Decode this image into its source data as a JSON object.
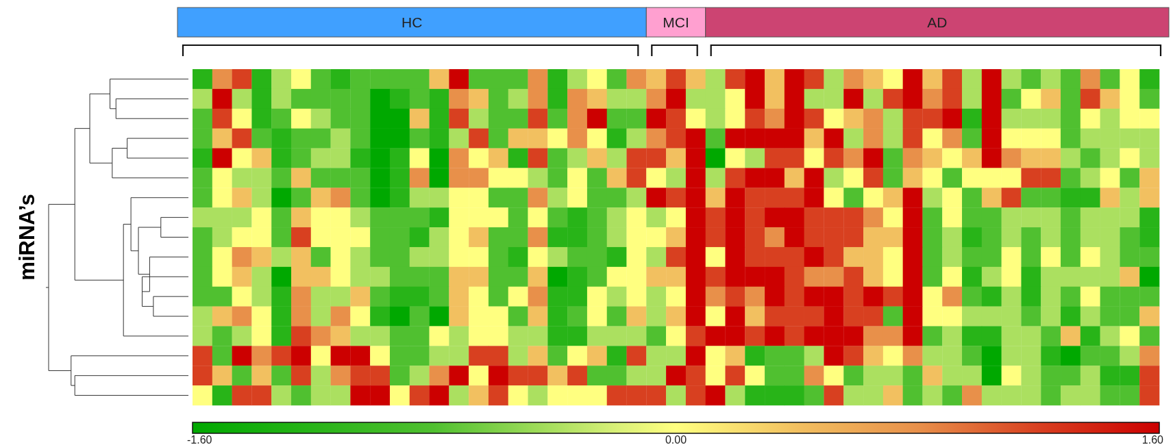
{
  "chart_data": {
    "type": "heatmap",
    "annotations": [
      "HC",
      "MCI",
      "AD",
      "miRNA’s"
    ],
    "categories": [
      null,
      null,
      null,
      null,
      null,
      null,
      null,
      null,
      null,
      null,
      null,
      null,
      null,
      null,
      null,
      null,
      null,
      null,
      null,
      null,
      null,
      null,
      null,
      null,
      null,
      null,
      null,
      null,
      null,
      null,
      null,
      null,
      null,
      null,
      null,
      null,
      null,
      null,
      null,
      null,
      null,
      null,
      null,
      null,
      null,
      null,
      null,
      null,
      null
    ],
    "y_categories": [
      null,
      null,
      null,
      null,
      null,
      null,
      null,
      null,
      null,
      null,
      null,
      null,
      null,
      null,
      null,
      null,
      null
    ],
    "clim": [
      -1.6,
      1.6
    ],
    "cticks": [
      {
        "value": -1.6,
        "label": "-1.60"
      },
      {
        "value": 0,
        "label": "0.00"
      },
      {
        "value": 1.6,
        "label": "1.60"
      }
    ],
    "cells": [
      [
        -1.2,
        0.8,
        1.2,
        -1.2,
        -0.4,
        0,
        -0.8,
        -1.2,
        -0.8,
        -0.8,
        -0.8,
        -0.8,
        0.4,
        1.6,
        -0.8,
        -0.8,
        -0.8,
        0.8,
        -1.2,
        -0.4,
        0,
        -0.8,
        0.8,
        0.4,
        1.2,
        0.4,
        -0.4,
        1.2,
        1.6,
        0.4,
        1.6,
        1.2,
        -0.4,
        0.8,
        0.4,
        0,
        1.6,
        0.4,
        1.2,
        -0.4,
        1.6,
        -0.4,
        -0.8,
        -0.4,
        -0.8,
        0.8,
        -0.8,
        0,
        -1.2
      ],
      [
        -0.4,
        1.6,
        -0.4,
        -1.2,
        -0.4,
        -0.8,
        -0.8,
        -0.8,
        -0.8,
        -1.6,
        -1.2,
        -0.8,
        -1.2,
        0.8,
        0.4,
        -0.8,
        -0.4,
        0.8,
        -1.2,
        0.8,
        0.4,
        -0.4,
        -0.4,
        0.8,
        1.6,
        -0.4,
        -0.4,
        0,
        1.6,
        0.4,
        1.6,
        -0.4,
        -0.4,
        1.6,
        -0.4,
        1.2,
        1.6,
        0.8,
        1.2,
        -0.4,
        1.6,
        -0.8,
        0,
        0.4,
        -0.8,
        1.2,
        0.4,
        0,
        -0.8
      ],
      [
        -0.8,
        1.2,
        0,
        -1.2,
        -0.8,
        0,
        -0.4,
        -0.8,
        -0.8,
        -1.6,
        -1.6,
        0.4,
        -1.2,
        1.2,
        -0.4,
        -0.8,
        -0.8,
        1.2,
        -0.8,
        0.8,
        1.6,
        -0.8,
        -0.8,
        1.6,
        1.2,
        0,
        -0.4,
        0,
        1.2,
        0.8,
        1.6,
        1.2,
        0,
        0.4,
        0.8,
        -0.4,
        1.2,
        1.2,
        1.6,
        -1.2,
        1.6,
        -0.4,
        -0.4,
        -0.4,
        -0.8,
        0,
        -0.4,
        0,
        0
      ],
      [
        -0.8,
        0.4,
        1.2,
        -0.8,
        -1.2,
        -0.8,
        -0.8,
        -0.4,
        -0.8,
        -1.6,
        -1.6,
        -0.8,
        -1.2,
        -0.4,
        1.2,
        -0.8,
        0.4,
        0.4,
        0,
        0.8,
        0,
        -1.2,
        -0.4,
        0.8,
        1.2,
        1.6,
        -0.8,
        1.6,
        1.6,
        1.6,
        1.6,
        0.4,
        1.6,
        -0.4,
        0.8,
        -0.4,
        1.2,
        0,
        0.8,
        -0.8,
        1.6,
        0,
        0,
        0,
        -0.8,
        -0.4,
        -0.4,
        -0.4,
        -0.4
      ],
      [
        -1.2,
        1.6,
        0,
        0.4,
        -1.2,
        -0.8,
        -0.4,
        -0.4,
        -1.2,
        -1.6,
        -1.2,
        0,
        -1.6,
        0.8,
        0,
        0.4,
        -1.2,
        1.2,
        -0.8,
        -0.4,
        0.4,
        -0.4,
        1.2,
        1.2,
        0.4,
        1.6,
        -1.6,
        0,
        -0.4,
        1.2,
        1.2,
        0,
        1.2,
        0.8,
        1.6,
        -0.8,
        0.8,
        0.4,
        0,
        0.4,
        1.6,
        0.8,
        0.4,
        0.4,
        -0.4,
        -0.8,
        -0.4,
        0,
        -0.4
      ],
      [
        -0.8,
        0,
        -0.4,
        -0.4,
        -0.8,
        0.4,
        -0.8,
        -0.8,
        -0.8,
        -1.6,
        -1.2,
        0.8,
        -1.6,
        0.8,
        0.8,
        0,
        0,
        -0.4,
        -0.8,
        0,
        -0.8,
        0.4,
        1.2,
        0,
        -0.4,
        1.6,
        -0.4,
        1.2,
        1.6,
        1.6,
        0.4,
        1.6,
        -0.4,
        0,
        1.2,
        -0.8,
        0.4,
        0,
        -0.8,
        0,
        0,
        0,
        1.2,
        1.2,
        -0.8,
        -0.4,
        0,
        -0.8,
        0.4
      ],
      [
        -0.8,
        0,
        0.4,
        -0.4,
        -1.6,
        -0.8,
        0.4,
        0.8,
        -0.8,
        -1.6,
        -1.2,
        -0.4,
        -0.4,
        0,
        0,
        -0.8,
        -0.8,
        0.8,
        -0.4,
        0,
        -0.8,
        -0.8,
        -0.4,
        1.6,
        1.2,
        1.6,
        0.4,
        1.6,
        1.2,
        1.2,
        1.2,
        1.6,
        0,
        -0.8,
        0,
        0.4,
        1.6,
        -0.4,
        0,
        -0.8,
        0.4,
        1.2,
        -0.8,
        -0.8,
        -1.2,
        -1.2,
        0.4,
        -0.4,
        0.4
      ],
      [
        -0.4,
        -0.4,
        -0.4,
        0,
        -0.8,
        0.4,
        0,
        0,
        -0.4,
        -0.8,
        -0.8,
        -0.8,
        -1.2,
        0,
        0,
        0,
        -0.8,
        0,
        -0.8,
        -1.2,
        -0.8,
        -0.4,
        0,
        -0.4,
        0,
        1.6,
        1.2,
        1.6,
        1.2,
        1.6,
        1.6,
        1.2,
        1.2,
        1.2,
        0.8,
        0,
        1.6,
        -0.8,
        0,
        -0.8,
        -0.8,
        -0.4,
        -0.4,
        -0.4,
        -0.8,
        -0.4,
        -0.4,
        -0.4,
        -1.2
      ],
      [
        -0.8,
        -0.4,
        0,
        0,
        -0.8,
        1.2,
        0,
        0,
        0,
        -0.8,
        -0.8,
        -1.2,
        -0.4,
        0,
        0.4,
        -0.8,
        -0.8,
        0.8,
        -1.2,
        -1.2,
        -0.8,
        -0.4,
        0,
        0,
        0.4,
        1.6,
        1.2,
        1.6,
        1.2,
        0.8,
        1.6,
        1.2,
        1.2,
        1.2,
        0.4,
        0.4,
        1.6,
        -0.8,
        -0.4,
        -1.2,
        -0.8,
        -0.4,
        -0.8,
        -0.4,
        -0.8,
        -0.4,
        -0.4,
        -0.8,
        -1.2
      ],
      [
        -0.8,
        0,
        0.8,
        0.4,
        -0.4,
        0.4,
        -0.8,
        0,
        -0.4,
        -0.8,
        -0.8,
        -0.4,
        -0.4,
        0,
        0,
        -0.8,
        -1.2,
        0,
        -0.4,
        -0.8,
        -0.8,
        -1.2,
        0,
        -0.4,
        1.2,
        1.6,
        0,
        1.6,
        1.2,
        1.2,
        1.2,
        1.6,
        1.2,
        0.4,
        0.4,
        0,
        1.6,
        -0.8,
        -0.4,
        -0.8,
        -0.8,
        0,
        -0.8,
        0,
        -0.8,
        0,
        -0.4,
        -0.8,
        -0.8
      ],
      [
        -0.8,
        0,
        0.4,
        -0.4,
        -1.6,
        0.4,
        0.4,
        0,
        -0.4,
        -0.4,
        -0.8,
        -0.8,
        -0.8,
        0.4,
        0.4,
        -0.8,
        -0.8,
        0.4,
        -1.6,
        -1.2,
        -0.8,
        0,
        0,
        0.4,
        0.4,
        1.6,
        1.2,
        1.6,
        1.6,
        1.6,
        1.2,
        0.8,
        0.8,
        1.2,
        0.4,
        0,
        1.6,
        -0.8,
        0,
        -1.2,
        -0.4,
        0,
        -1.2,
        -0.4,
        -0.4,
        -0.4,
        -0.4,
        0.4,
        -1.6
      ],
      [
        -0.8,
        -0.8,
        0,
        -0.4,
        -1.2,
        0.8,
        -0.4,
        -0.4,
        0.4,
        -0.8,
        -1.2,
        -1.2,
        -0.8,
        0.4,
        0,
        -0.8,
        0,
        0.8,
        -1.2,
        -1.2,
        0,
        -0.4,
        0,
        -0.4,
        0,
        1.6,
        0.8,
        1.2,
        0.8,
        1.6,
        1.2,
        1.6,
        1.6,
        1.2,
        1.6,
        1.2,
        1.6,
        0,
        0.8,
        -0.8,
        -1.2,
        -0.4,
        -1.2,
        -0.4,
        -0.8,
        0,
        -0.8,
        -0.8,
        -0.8
      ],
      [
        -0.4,
        0.4,
        0.8,
        0,
        -1.2,
        0.8,
        -0.4,
        0.8,
        0,
        -1.2,
        -1.6,
        -0.8,
        -1.6,
        0.4,
        0,
        0,
        -0.8,
        0.4,
        -1.2,
        -0.8,
        0,
        -0.8,
        0.4,
        -0.4,
        0.4,
        1.6,
        0,
        1.6,
        0.4,
        1.2,
        1.2,
        1.2,
        1.6,
        1.2,
        1.2,
        -0.8,
        1.6,
        0,
        0,
        -0.4,
        -0.4,
        -0.4,
        -0.8,
        -0.4,
        -1.2,
        -0.4,
        -0.8,
        -0.8,
        0.4
      ],
      [
        -0.4,
        -0.8,
        -0.4,
        0,
        -1.2,
        1.2,
        0.8,
        0.4,
        -0.4,
        -0.4,
        -0.8,
        -0.8,
        0,
        -0.4,
        0,
        0,
        -0.4,
        -0.4,
        -1.2,
        -1.2,
        -0.4,
        -0.4,
        -0.4,
        -0.8,
        0,
        1.2,
        1.6,
        1.6,
        1.2,
        1.6,
        1.2,
        1.6,
        1.6,
        1.6,
        0.8,
        0.8,
        1.6,
        -0.8,
        -0.4,
        -1.2,
        -1.2,
        -0.4,
        -0.4,
        -0.8,
        0.4,
        -1.2,
        -0.4,
        0,
        -0.8
      ],
      [
        1.2,
        -0.8,
        1.6,
        0.8,
        1.2,
        1.6,
        0,
        1.6,
        1.6,
        0,
        -0.8,
        -0.8,
        -0.4,
        -0.4,
        1.2,
        1.2,
        -0.4,
        0.4,
        -0.8,
        0,
        0.4,
        -1.2,
        1.2,
        -0.4,
        -0.4,
        1.6,
        0,
        0.4,
        -1.2,
        -0.8,
        -0.8,
        -0.4,
        1.6,
        1.2,
        0.4,
        0,
        0.8,
        -0.4,
        -0.4,
        -0.8,
        -1.6,
        -0.4,
        -0.4,
        -1.2,
        -1.6,
        -0.8,
        -0.8,
        -0.4,
        0.8
      ],
      [
        1.2,
        0.4,
        -0.8,
        0.4,
        -0.8,
        1.2,
        -0.4,
        0.8,
        1.2,
        1.2,
        -0.8,
        -0.4,
        0.8,
        1.6,
        0,
        1.6,
        1.2,
        1.2,
        0.4,
        1.2,
        -0.8,
        -0.8,
        -0.4,
        -0.4,
        1.6,
        1.2,
        0,
        1.2,
        0,
        -0.8,
        -0.8,
        0.8,
        0,
        -0.8,
        -0.4,
        -0.4,
        -0.8,
        0.4,
        -0.4,
        -0.4,
        -1.6,
        0,
        -0.4,
        -0.8,
        -0.8,
        -0.4,
        -1.2,
        -1.2,
        1.2
      ],
      [
        0,
        -1.2,
        1.2,
        1.2,
        -0.4,
        -0.8,
        -0.4,
        -0.4,
        1.6,
        1.6,
        0,
        1.2,
        1.6,
        -0.4,
        0.4,
        1.2,
        0,
        -0.4,
        0,
        0,
        0,
        1.2,
        1.2,
        1.2,
        -0.4,
        1.2,
        1.6,
        -0.4,
        -1.2,
        -1.2,
        -1.2,
        -0.8,
        1.2,
        -0.4,
        -0.4,
        0.4,
        -0.8,
        -0.4,
        -0.8,
        0.8,
        -0.4,
        -0.4,
        -0.4,
        -0.8,
        -0.4,
        -0.4,
        -0.8,
        -0.8,
        1.2
      ]
    ]
  }
}
